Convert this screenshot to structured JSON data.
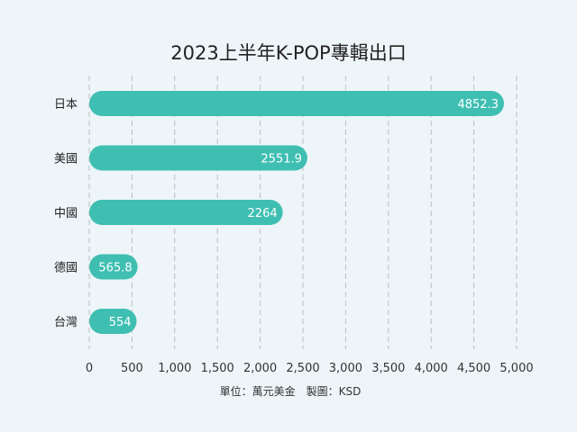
{
  "colors": {
    "background": "#eef5f9",
    "bar": "#3fbfb2",
    "grid": "#b8bec3",
    "text": "#222222",
    "label_text": "#ffffff"
  },
  "chart_data": {
    "type": "bar",
    "orientation": "horizontal",
    "title": "2023上半年K-POP專輯出口",
    "categories": [
      "日本",
      "美國",
      "中國",
      "德國",
      "台灣"
    ],
    "values": [
      4852.3,
      2551.9,
      2264,
      565.8,
      554
    ],
    "data_labels": [
      "4852.3",
      "2551.9",
      "2264",
      "565.8",
      "554"
    ],
    "xlim": [
      0,
      5000
    ],
    "xticks": [
      0,
      500,
      1000,
      1500,
      2000,
      2500,
      3000,
      3500,
      4000,
      4500,
      5000
    ],
    "xtick_labels": [
      "0",
      "500",
      "1,000",
      "1,500",
      "2,000",
      "2,500",
      "3,000",
      "3,500",
      "4,000",
      "4,500",
      "5,000"
    ],
    "grid": "vertical dashed",
    "footnote": "單位：萬元美金　製圖：KSD"
  }
}
